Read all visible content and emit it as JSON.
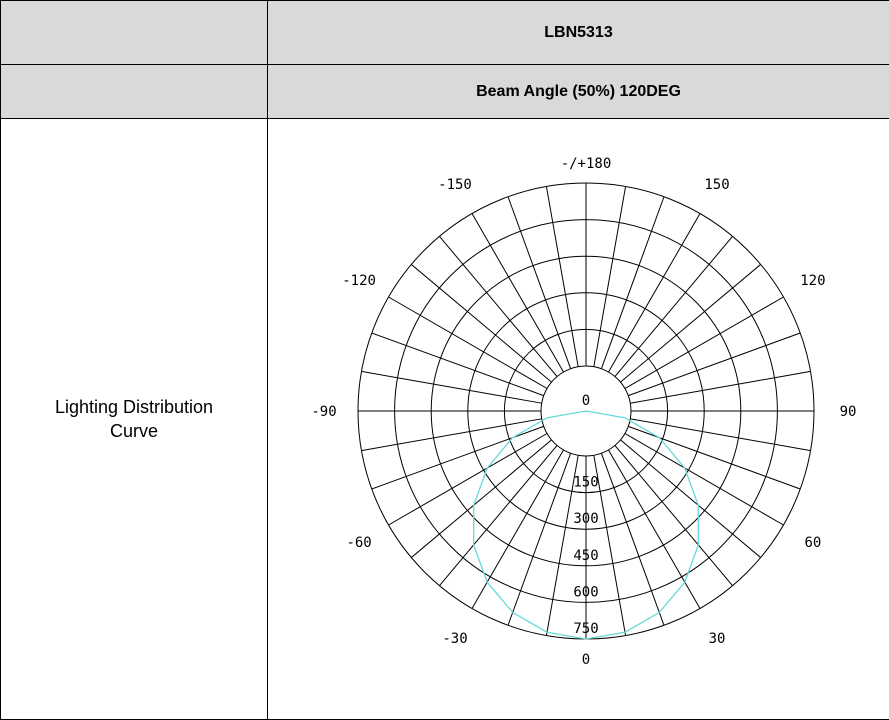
{
  "table": {
    "model": "LBN5313",
    "beam_angle_label": "Beam Angle (50%) 120DEG",
    "row_label_line1": "Lighting Distribution",
    "row_label_line2": "Curve"
  },
  "colors": {
    "header_shade": "#d9d9d9",
    "grid": "#000000",
    "curve": "#66d9d9"
  },
  "chart_data": {
    "type": "polar",
    "angle_labels": [
      {
        "angle": 180,
        "text": "-/+180"
      },
      {
        "angle": -150,
        "text": "-150"
      },
      {
        "angle": 150,
        "text": "150"
      },
      {
        "angle": -120,
        "text": "-120"
      },
      {
        "angle": 120,
        "text": "120"
      },
      {
        "angle": -90,
        "text": "-90"
      },
      {
        "angle": 90,
        "text": "90"
      },
      {
        "angle": -60,
        "text": "-60"
      },
      {
        "angle": 60,
        "text": "60"
      },
      {
        "angle": -30,
        "text": "-30"
      },
      {
        "angle": 30,
        "text": "30"
      },
      {
        "angle": 0,
        "text": "0"
      }
    ],
    "radial_labels": [
      "0",
      "150",
      "300",
      "450",
      "600",
      "750"
    ],
    "radial_values": [
      0,
      150,
      300,
      450,
      600,
      750
    ],
    "radial_max": 750,
    "spoke_step_deg": 10,
    "series": [
      {
        "angles": [
          0,
          10,
          20,
          30,
          40,
          50,
          60,
          70,
          80,
          90
        ],
        "values": [
          750,
          739,
          705,
          650,
          575,
          482,
          375,
          257,
          130,
          0
        ],
        "symmetric": true
      }
    ]
  }
}
